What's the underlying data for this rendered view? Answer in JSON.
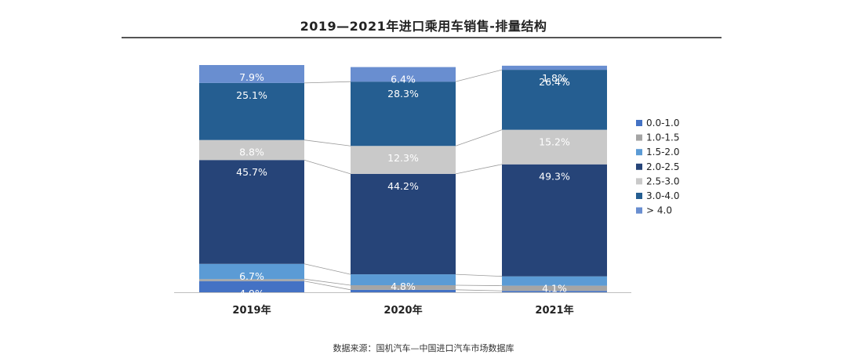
{
  "chart_data": {
    "type": "bar",
    "stacked": true,
    "normalized": true,
    "title": "2019—2021年进口乘用车销售-排量结构",
    "categories": [
      "2019年",
      "2020年",
      "2021年"
    ],
    "series": [
      {
        "name": "0.0-1.0",
        "color": "#4472C4",
        "values": [
          4.9,
          1.1,
          0.6
        ],
        "labels": [
          "4.9%",
          "",
          ""
        ]
      },
      {
        "name": "1.0-1.5",
        "color": "#A5A5A5",
        "values": [
          0.9,
          2.0,
          2.3
        ],
        "labels": [
          "",
          "",
          ""
        ]
      },
      {
        "name": "1.5-2.0",
        "color": "#5B9BD5",
        "values": [
          6.7,
          4.8,
          4.1
        ],
        "labels": [
          "6.7%",
          "4.8%",
          "4.1%"
        ]
      },
      {
        "name": "2.0-2.5",
        "color": "#264478",
        "values": [
          45.7,
          44.2,
          49.3
        ],
        "labels": [
          "45.7%",
          "44.2%",
          "49.3%"
        ]
      },
      {
        "name": "2.5-3.0",
        "color": "#C9C9C9",
        "values": [
          8.8,
          12.3,
          15.2
        ],
        "labels": [
          "8.8%",
          "12.3%",
          "15.2%"
        ]
      },
      {
        "name": "3.0-4.0",
        "color": "#255E91",
        "values": [
          25.1,
          28.3,
          26.4
        ],
        "labels": [
          "25.1%",
          "28.3%",
          "26.4%"
        ]
      },
      {
        "name": "> 4.0",
        "color": "#698ED0",
        "values": [
          7.9,
          6.4,
          1.8
        ],
        "labels": [
          "7.9%",
          "6.4%",
          "1.8%"
        ]
      }
    ],
    "ylim": [
      0,
      100
    ],
    "legend_position": "right",
    "series_lines": true,
    "grid": false
  },
  "source_note": "数据来源：国机汽车—中国进口汽车市场数据库"
}
